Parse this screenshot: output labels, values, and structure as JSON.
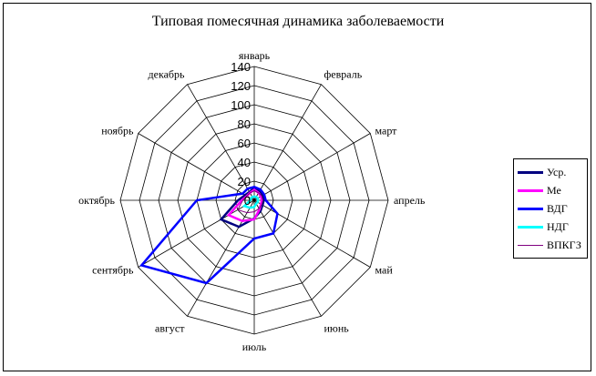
{
  "chart_data": {
    "type": "radar",
    "title": "Типовая помесячная динамика заболеваемости",
    "categories": [
      "январь",
      "февраль",
      "март",
      "апрель",
      "май",
      "июнь",
      "июль",
      "август",
      "сентябрь",
      "октябрь",
      "ноябрь",
      "декабрь"
    ],
    "rlim": [
      0,
      140
    ],
    "ticks": [
      "0",
      "20",
      "40",
      "60",
      "80",
      "100",
      "120",
      "140"
    ],
    "grid": true,
    "legend": "right",
    "series": [
      {
        "name": "Уср.",
        "color": "#000080",
        "values": [
          13,
          11,
          10,
          10,
          10,
          13,
          19,
          32,
          40,
          17,
          11,
          10
        ]
      },
      {
        "name": "Ме",
        "color": "#ff00ff",
        "values": [
          11,
          9,
          8,
          8,
          8,
          11,
          20,
          25,
          31,
          13,
          9,
          9
        ]
      },
      {
        "name": "ВДГ",
        "color": "#0000ff",
        "values": [
          14,
          13,
          12,
          12,
          28,
          40,
          40,
          100,
          136,
          60,
          14,
          14
        ]
      },
      {
        "name": "НДГ",
        "color": "#00ffff",
        "values": [
          4,
          4,
          4,
          4,
          4,
          4,
          7,
          9,
          12,
          4,
          4,
          4
        ]
      },
      {
        "name": "ВПКГЗ",
        "color": "#800080",
        "values": [
          10,
          9,
          9,
          9,
          9,
          10,
          12,
          15,
          20,
          12,
          9,
          9
        ]
      }
    ]
  }
}
